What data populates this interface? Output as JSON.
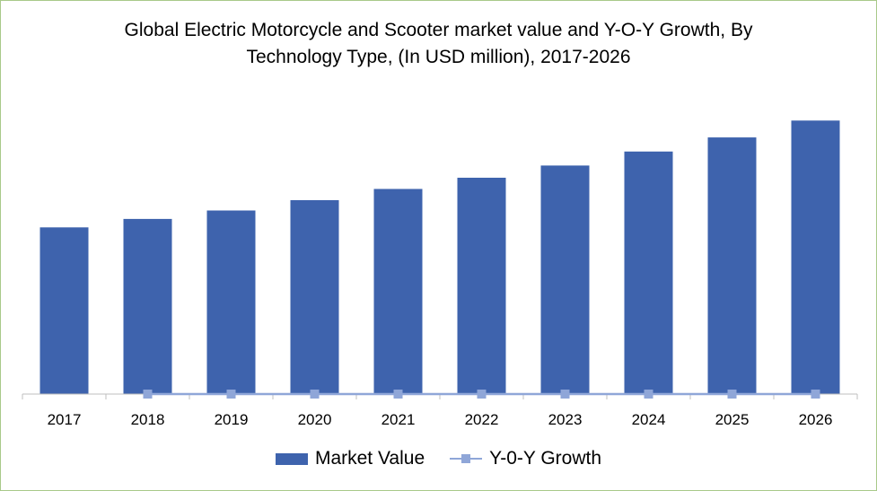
{
  "chart_data": {
    "type": "bar",
    "title_line1": "Global Electric Motorcycle and Scooter market value and Y-O-Y Growth, By",
    "title_line2": "Technology Type, (In USD  million), 2017-2026",
    "categories": [
      "2017",
      "2018",
      "2019",
      "2020",
      "2021",
      "2022",
      "2023",
      "2024",
      "2025",
      "2026"
    ],
    "series": [
      {
        "name": "Market Value",
        "type": "bar",
        "color": "#3e63ad",
        "values": [
          178,
          187,
          196,
          207,
          219,
          231,
          244,
          259,
          274,
          292
        ]
      },
      {
        "name": "Y-0-Y Growth",
        "type": "line",
        "color": "#8fa6d8",
        "values": [
          null,
          0,
          0,
          0,
          0,
          0,
          0,
          0,
          0,
          0
        ]
      }
    ],
    "ylim": [
      0,
      300
    ],
    "grid": false,
    "legend": "bottom"
  }
}
